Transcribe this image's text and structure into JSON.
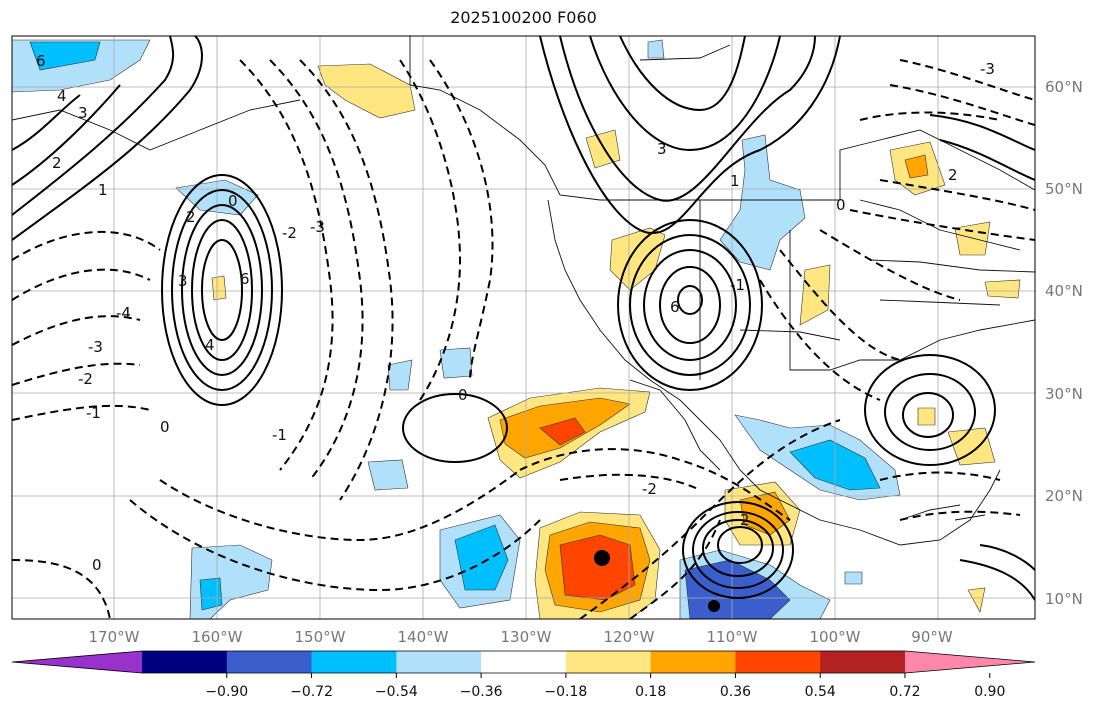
{
  "title": "2025100200 F060",
  "map": {
    "lon_labels": [
      "170°W",
      "160°W",
      "150°W",
      "140°W",
      "130°W",
      "120°W",
      "110°W",
      "100°W",
      "90°W"
    ],
    "lat_labels": [
      "60°N",
      "50°N",
      "40°N",
      "30°N",
      "20°N",
      "10°N"
    ],
    "contour_labels": [
      "6",
      "4",
      "3",
      "2",
      "1",
      "0",
      "0",
      "-1",
      "-2",
      "-3",
      "-4",
      "6",
      "4",
      "3",
      "2",
      "0",
      "-1",
      "-2",
      "-3",
      "-1",
      "-2",
      "0",
      "2",
      "3",
      "0",
      "1",
      "-3",
      "2",
      "6"
    ],
    "markers": [
      {
        "name": "max-marker",
        "color": "#000000"
      },
      {
        "name": "min-marker",
        "color": "#000000"
      }
    ]
  },
  "colorbar": {
    "colors": [
      "#9932cc",
      "#000080",
      "#3a5fcd",
      "#00bfff",
      "#b0e0fa",
      "#ffffff",
      "#ffe680",
      "#ffa500",
      "#ff4500",
      "#b22222",
      "#ff88aa"
    ],
    "tick_labels": [
      "−0.90",
      "−0.72",
      "−0.54",
      "−0.36",
      "−0.18",
      "0.18",
      "0.36",
      "0.54",
      "0.72",
      "0.90"
    ]
  }
}
